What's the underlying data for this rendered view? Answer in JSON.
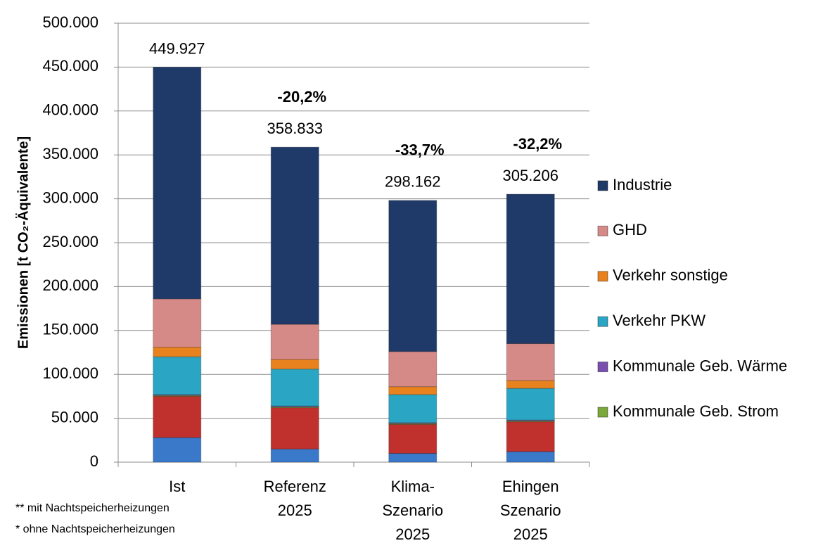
{
  "chart_data": {
    "type": "stacked_bar",
    "y_label": "Emissionen [t CO₂-Äquivalente]",
    "categories": [
      [
        "Ist"
      ],
      [
        "Referenz",
        "2025"
      ],
      [
        "Klima-",
        "Szenario",
        "2025"
      ],
      [
        "Ehingen",
        "Szenario",
        "2025"
      ]
    ],
    "series": [
      {
        "name": null,
        "color": "#3a78c9",
        "values": [
          28000,
          15000,
          10000,
          12000
        ]
      },
      {
        "name": null,
        "color": "#c0302c",
        "values": [
          47000,
          47000,
          33000,
          34000
        ]
      },
      {
        "name": "Kommunale Geb. Strom",
        "color": "#7aa83a",
        "values": [
          1000,
          1000,
          1000,
          1000
        ]
      },
      {
        "name": "Kommunale Geb. Wärme",
        "color": "#7a4fb0",
        "values": [
          1000,
          1000,
          1000,
          1000
        ]
      },
      {
        "name": "Verkehr PKW",
        "color": "#2aa6c4",
        "values": [
          43000,
          42000,
          32000,
          36000
        ]
      },
      {
        "name": "Verkehr sonstige",
        "color": "#e8821e",
        "values": [
          11000,
          11000,
          9000,
          9000
        ]
      },
      {
        "name": "GHD",
        "color": "#d68a88",
        "values": [
          55000,
          40000,
          40000,
          42000
        ]
      },
      {
        "name": "Industrie",
        "color": "#1f3a68",
        "values": [
          263927,
          201833,
          172162,
          170206
        ]
      }
    ],
    "totals": {
      "values": [
        449927,
        358833,
        298162,
        305206
      ],
      "value_labels": [
        "449.927",
        "358.833",
        "298.162",
        "305.206"
      ]
    },
    "changes": [
      null,
      "-20,2%",
      "-33,7%",
      "-32,2%"
    ],
    "ylim": [
      0,
      500000
    ],
    "yticks": [
      0,
      {
        "value": 50000,
        "label": "50.000"
      },
      {
        "value": 100000,
        "label": "100.000"
      },
      {
        "value": 150000,
        "label": "150.000"
      },
      {
        "value": 200000,
        "label": "200.000"
      },
      {
        "value": 250000,
        "label": "250.000"
      },
      {
        "value": 300000,
        "label": "300.000"
      },
      {
        "value": 350000,
        "label": "350.000"
      },
      {
        "value": 400000,
        "label": "400.000"
      },
      {
        "value": 450000,
        "label": "450.000"
      },
      {
        "value": 500000,
        "label": "500.000"
      }
    ],
    "grid": true,
    "footnotes": [
      "** mit Nachtspeicherheizungen",
      "* ohne Nachtspeicherheizungen"
    ]
  }
}
